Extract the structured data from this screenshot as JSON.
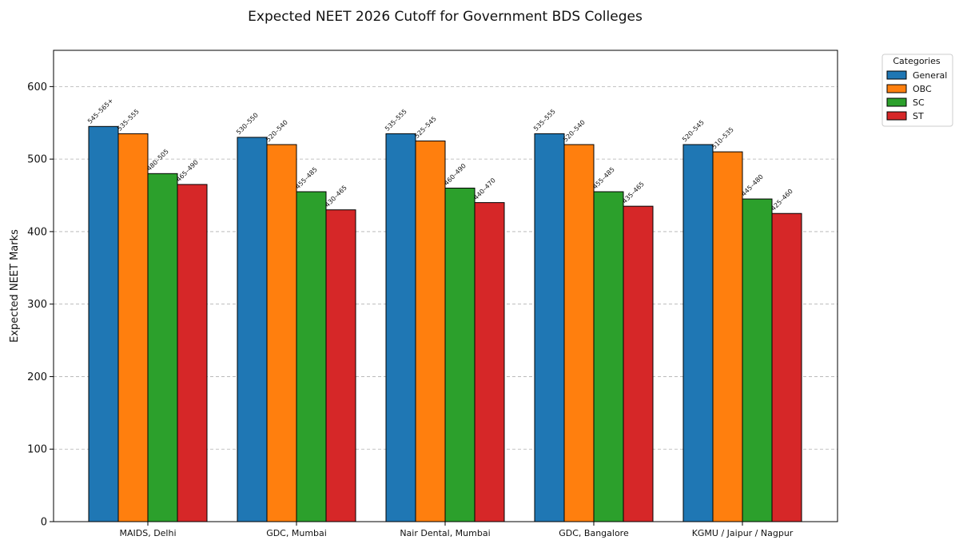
{
  "chart_data": {
    "type": "bar",
    "title": "Expected NEET 2026 Cutoff for Government BDS Colleges",
    "xlabel": "",
    "ylabel": "Expected NEET Marks",
    "ylim": [
      0,
      650
    ],
    "yticks": [
      0,
      100,
      200,
      300,
      400,
      500,
      600
    ],
    "grid": "y-dashed",
    "categories": [
      "MAIDS, Delhi",
      "GDC, Mumbai",
      "Nair Dental, Mumbai",
      "GDC, Bangalore",
      "KGMU / Jaipur / Nagpur"
    ],
    "legend": {
      "title": "Categories",
      "placement": "outside-top-right"
    },
    "series": [
      {
        "name": "General",
        "color": "#1f77b4",
        "values": [
          545,
          530,
          535,
          535,
          520
        ],
        "labels": [
          "545–565+",
          "530–550",
          "535–555",
          "535–555",
          "520–545"
        ]
      },
      {
        "name": "OBC",
        "color": "#ff7f0e",
        "values": [
          535,
          520,
          525,
          520,
          510
        ],
        "labels": [
          "535–555",
          "520–540",
          "525–545",
          "520–540",
          "510–535"
        ]
      },
      {
        "name": "SC",
        "color": "#2ca02c",
        "values": [
          480,
          455,
          460,
          455,
          445
        ],
        "labels": [
          "480–505",
          "455–485",
          "460–490",
          "455–485",
          "445–480"
        ]
      },
      {
        "name": "ST",
        "color": "#d62728",
        "values": [
          465,
          430,
          440,
          435,
          425
        ],
        "labels": [
          "465–490",
          "430–465",
          "440–470",
          "435–465",
          "425–460"
        ]
      }
    ]
  }
}
